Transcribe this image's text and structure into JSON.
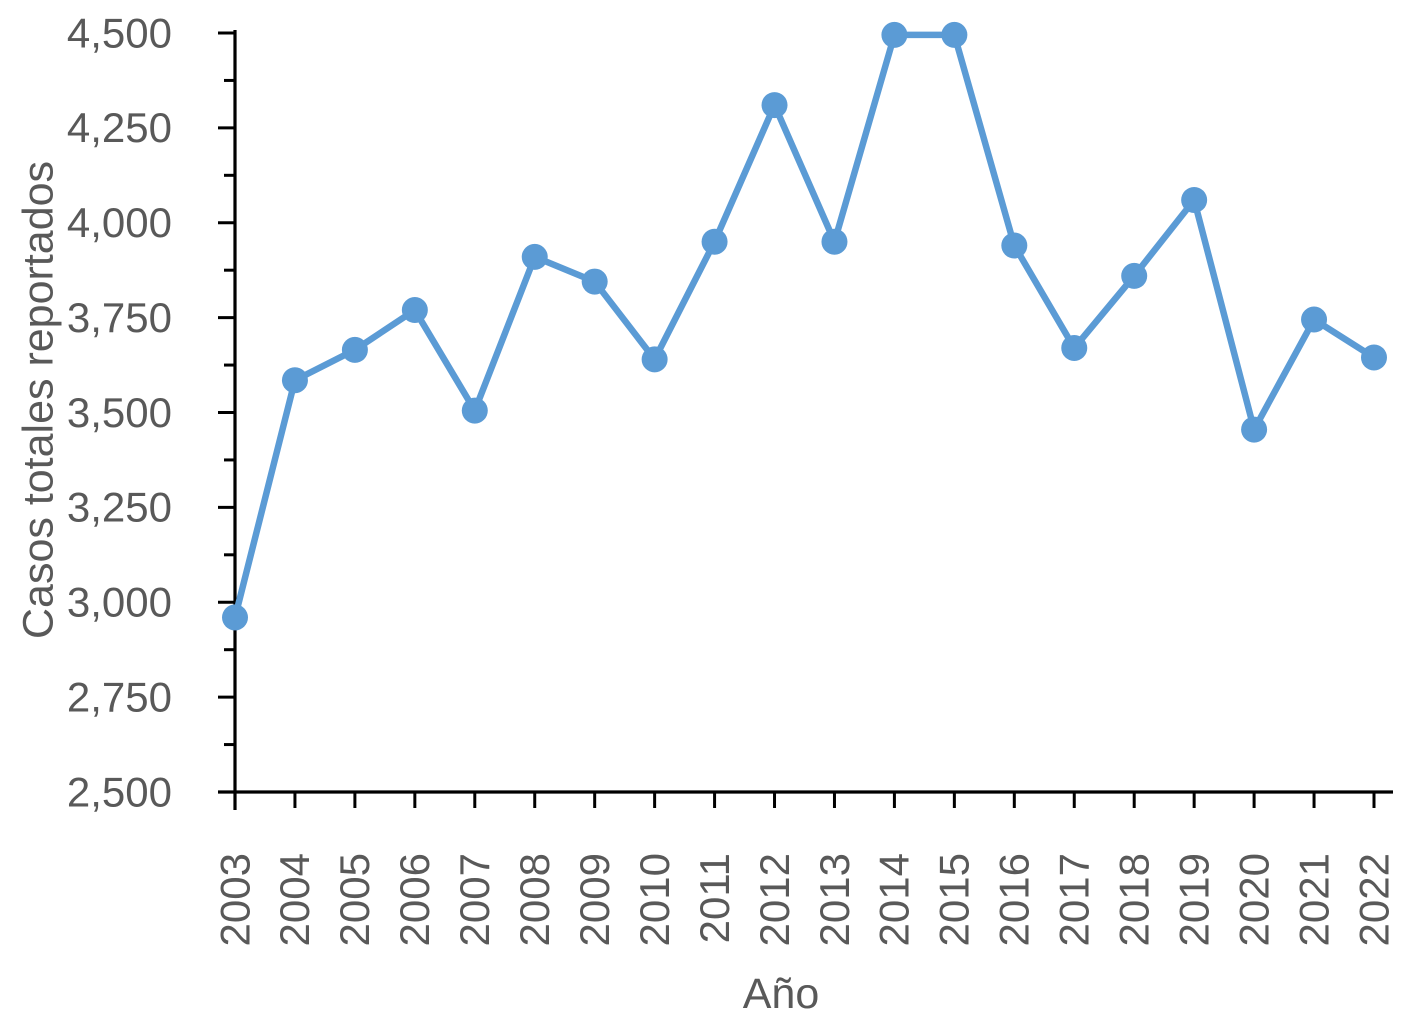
{
  "figure": {
    "background": "#ffffff"
  },
  "chart_data": {
    "type": "line",
    "title": "",
    "xlabel": "Año",
    "ylabel": "Casos totales reportados",
    "categories": [
      "2003",
      "2004",
      "2005",
      "2006",
      "2007",
      "2008",
      "2009",
      "2010",
      "2011",
      "2012",
      "2013",
      "2014",
      "2015",
      "2016",
      "2017",
      "2018",
      "2019",
      "2020",
      "2021",
      "2022"
    ],
    "series": [
      {
        "name": "Casos totales reportados",
        "values": [
          2960,
          3585,
          3665,
          3770,
          3505,
          3910,
          3845,
          3640,
          3950,
          4310,
          3950,
          4495,
          4495,
          3940,
          3670,
          3860,
          4060,
          3455,
          3745,
          3645
        ]
      }
    ],
    "ylim": [
      2500,
      4500
    ],
    "ytick_major_step": 250,
    "ytick_minor_step": 125,
    "ytick_values": [
      2500,
      2750,
      3000,
      3250,
      3500,
      3750,
      4000,
      4250,
      4500
    ],
    "ytick_labels": [
      "2,500",
      "2,750",
      "3,000",
      "3,250",
      "3,500",
      "3,750",
      "4,000",
      "4,250",
      "4,500"
    ],
    "grid": "off",
    "legend": "none",
    "marker": "circle",
    "colors": {
      "line": "#5B9BD5",
      "marker": "#5B9BD5",
      "axis": "#000000",
      "tick_label": "#595959",
      "axis_title": "#595959"
    }
  }
}
